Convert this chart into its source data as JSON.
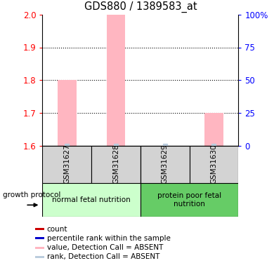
{
  "title": "GDS880 / 1389583_at",
  "samples": [
    "GSM31627",
    "GSM31628",
    "GSM31629",
    "GSM31630"
  ],
  "values": [
    1.8,
    2.0,
    1.6,
    1.7
  ],
  "rank_values": [
    2,
    3,
    1,
    2
  ],
  "ylim_left": [
    1.6,
    2.0
  ],
  "ylim_right": [
    0,
    100
  ],
  "yticks_left": [
    1.6,
    1.7,
    1.8,
    1.9,
    2.0
  ],
  "yticks_right": [
    0,
    25,
    50,
    75,
    100
  ],
  "bar_color": "#FFB6C1",
  "rank_bar_color": "#BBCCDD",
  "group1_indices": [
    0,
    1
  ],
  "group2_indices": [
    2,
    3
  ],
  "group1_label": "normal fetal nutrition",
  "group2_label": "protein poor fetal\nnutrition",
  "group1_color": "#CCFFCC",
  "group2_color": "#66CC66",
  "growth_protocol_label": "growth protocol",
  "legend_items": [
    {
      "color": "#CC0000",
      "label": "count"
    },
    {
      "color": "#0000CC",
      "label": "percentile rank within the sample"
    },
    {
      "color": "#FFB6C1",
      "label": "value, Detection Call = ABSENT"
    },
    {
      "color": "#BBCCDD",
      "label": "rank, Detection Call = ABSENT"
    }
  ]
}
